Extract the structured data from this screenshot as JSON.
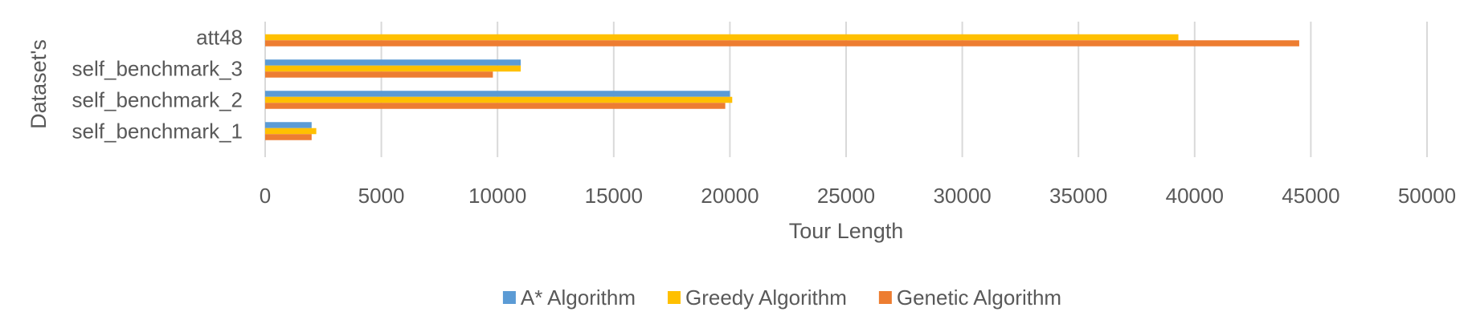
{
  "chart_data": {
    "type": "bar",
    "orientation": "horizontal",
    "title": "",
    "xlabel": "Tour Length",
    "ylabel": "Dataset's",
    "xlim": [
      0,
      50000
    ],
    "x_ticks": [
      0,
      5000,
      10000,
      15000,
      20000,
      25000,
      30000,
      35000,
      40000,
      45000,
      50000
    ],
    "categories": [
      "self_benchmark_1",
      "self_benchmark_2",
      "self_benchmark_3",
      "att48"
    ],
    "series": [
      {
        "name": "A* Algorithm",
        "color": "#5B9BD5",
        "values": [
          2000,
          20000,
          11000,
          null
        ]
      },
      {
        "name": "Greedy Algorithm",
        "color": "#FFC000",
        "values": [
          2200,
          20100,
          11000,
          39300
        ]
      },
      {
        "name": "Genetic Algorithm",
        "color": "#ED7D31",
        "values": [
          2000,
          19800,
          9800,
          44500
        ]
      }
    ],
    "grid": "vertical",
    "legend_position": "bottom"
  }
}
